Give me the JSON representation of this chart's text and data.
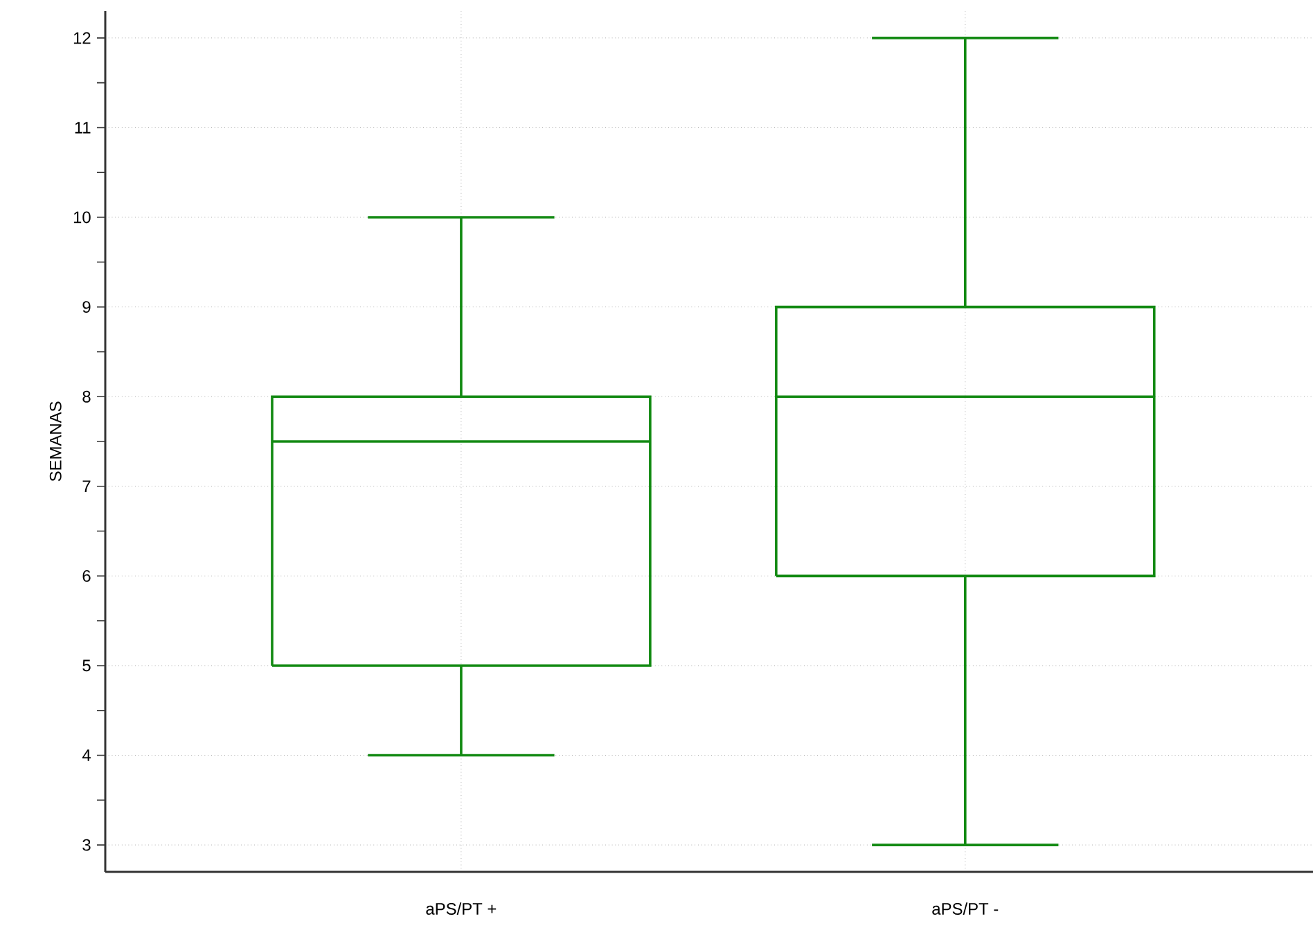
{
  "chart_data": {
    "type": "box",
    "ylabel": "SEMANAS",
    "categories": [
      "aPS/PT +",
      "aPS/PT -"
    ],
    "color": "#138a13",
    "boxes": [
      {
        "low": 4,
        "q1": 5,
        "median": 7.5,
        "q3": 8,
        "high": 10
      },
      {
        "low": 3,
        "q1": 6,
        "median": 8,
        "q3": 9,
        "high": 12
      }
    ],
    "ylim": [
      2.7,
      12.3
    ],
    "yticks": [
      3,
      4,
      5,
      6,
      7,
      8,
      9,
      10,
      11,
      12
    ],
    "grid": true
  }
}
